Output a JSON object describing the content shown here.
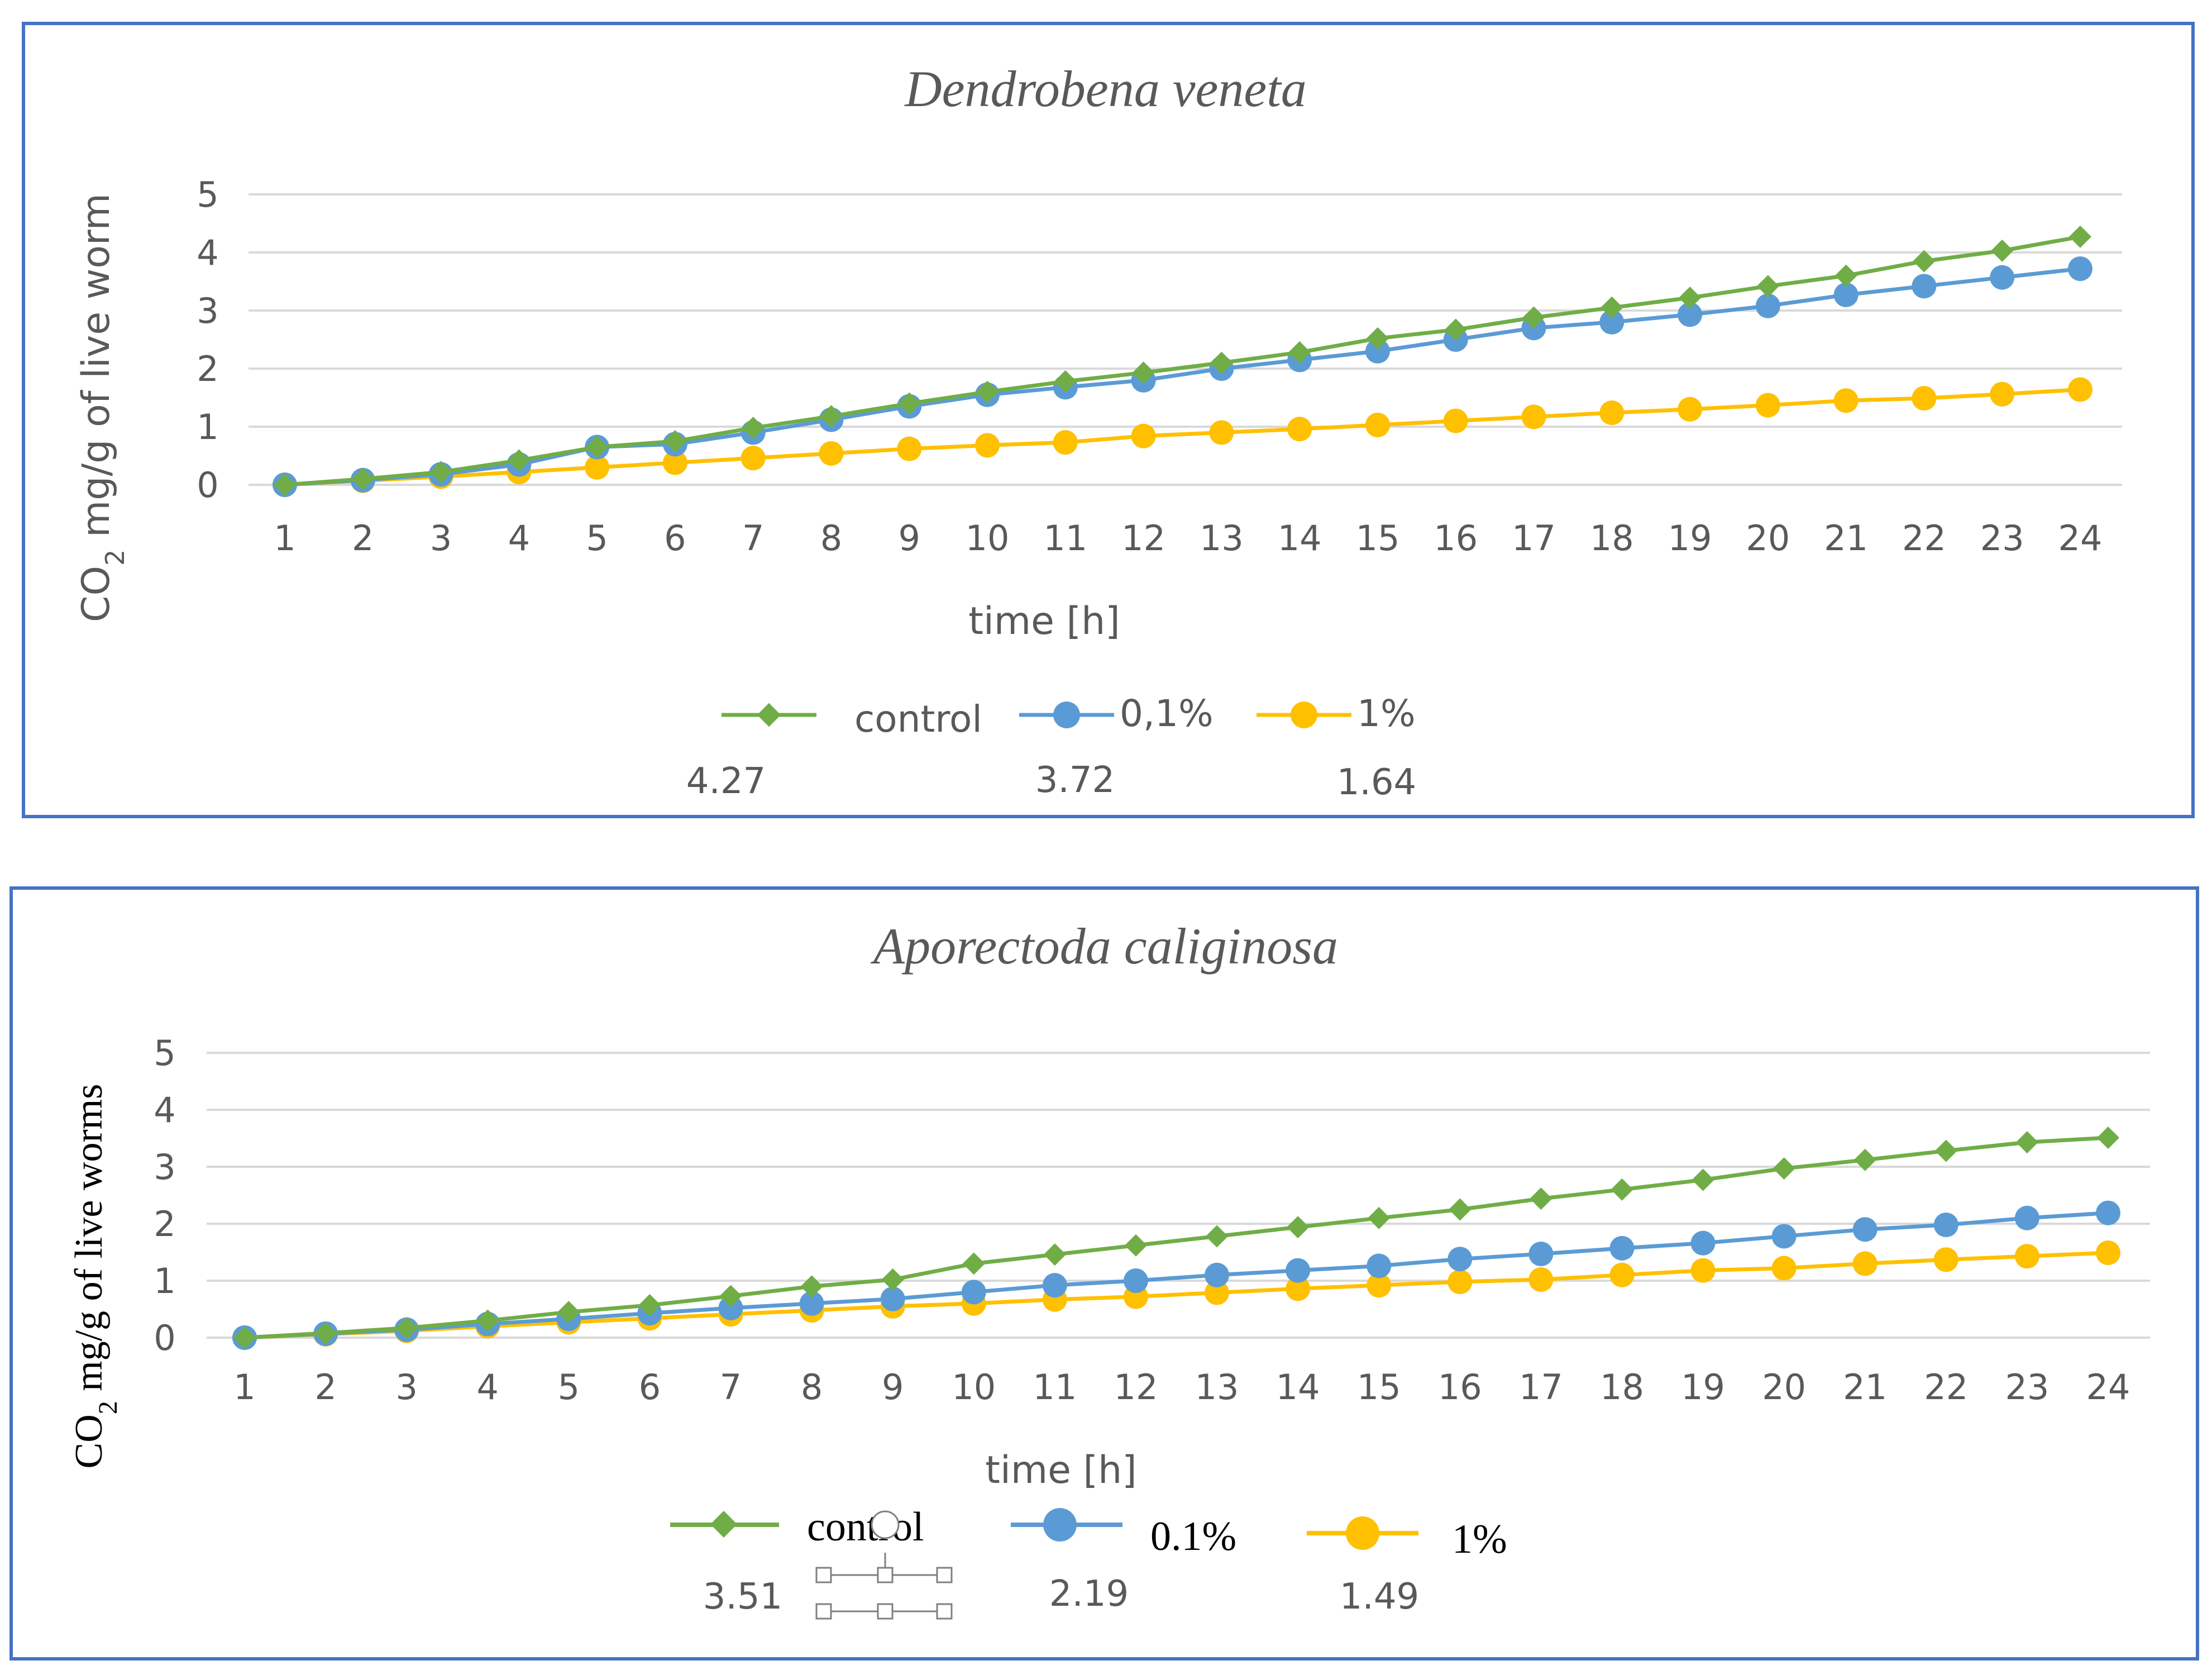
{
  "colors": {
    "frame": "#4472C4",
    "grid": "#D9D9D9",
    "axis_text": "#595959",
    "control": "#70AD47",
    "p01": "#5B9BD5",
    "p1": "#FFC000"
  },
  "chart_data": [
    {
      "type": "line",
      "title": "Dendrobena veneta",
      "xlabel": "time [h]",
      "ylabel_main": "CO",
      "ylabel_sub": "2",
      "ylabel_rest": "  mg/g of live worm",
      "ylim": [
        0,
        5
      ],
      "yticks": [
        "0",
        "1",
        "2",
        "3",
        "4",
        "5"
      ],
      "x": [
        "1",
        "2",
        "3",
        "4",
        "5",
        "6",
        "7",
        "8",
        "9",
        "10",
        "11",
        "12",
        "13",
        "14",
        "15",
        "16",
        "17",
        "18",
        "19",
        "20",
        "21",
        "22",
        "23",
        "24"
      ],
      "grid": true,
      "legend_position": "bottom",
      "series": [
        {
          "name": "control",
          "marker": "diamond",
          "final_label": "4.27",
          "values": [
            0,
            0.1,
            0.22,
            0.42,
            0.65,
            0.75,
            0.98,
            1.18,
            1.4,
            1.6,
            1.78,
            1.93,
            2.1,
            2.28,
            2.52,
            2.67,
            2.88,
            3.05,
            3.22,
            3.42,
            3.6,
            3.85,
            4.03,
            4.27
          ]
        },
        {
          "name": "0,1%",
          "marker": "circle",
          "final_label": "3.72",
          "values": [
            0,
            0.08,
            0.18,
            0.35,
            0.65,
            0.7,
            0.9,
            1.12,
            1.35,
            1.55,
            1.68,
            1.8,
            2.0,
            2.15,
            2.3,
            2.5,
            2.7,
            2.8,
            2.93,
            3.08,
            3.27,
            3.42,
            3.57,
            3.72
          ]
        },
        {
          "name": "1%",
          "marker": "circle",
          "final_label": "1.64",
          "values": [
            0,
            0.07,
            0.14,
            0.22,
            0.3,
            0.38,
            0.46,
            0.54,
            0.62,
            0.68,
            0.73,
            0.84,
            0.9,
            0.96,
            1.03,
            1.1,
            1.17,
            1.24,
            1.3,
            1.37,
            1.45,
            1.49,
            1.56,
            1.64
          ]
        }
      ]
    },
    {
      "type": "line",
      "title": "Aporectoda caliginosa",
      "xlabel": "time [h]",
      "ylabel_main": "CO",
      "ylabel_sub": "2",
      "ylabel_rest": " mg/g of live worms",
      "ylim": [
        0,
        5
      ],
      "yticks": [
        "0",
        "1",
        "2",
        "3",
        "4",
        "5"
      ],
      "x": [
        "1",
        "2",
        "3",
        "4",
        "5",
        "6",
        "7",
        "8",
        "9",
        "10",
        "11",
        "12",
        "13",
        "14",
        "15",
        "16",
        "17",
        "18",
        "19",
        "20",
        "21",
        "22",
        "23",
        "24"
      ],
      "grid": true,
      "legend_position": "bottom",
      "series": [
        {
          "name": "control",
          "marker": "diamond",
          "final_label": "3.51",
          "values": [
            0,
            0.08,
            0.17,
            0.3,
            0.45,
            0.57,
            0.73,
            0.9,
            1.02,
            1.3,
            1.46,
            1.62,
            1.78,
            1.94,
            2.1,
            2.25,
            2.44,
            2.6,
            2.77,
            2.97,
            3.12,
            3.28,
            3.43,
            3.51
          ]
        },
        {
          "name": "0.1%",
          "marker": "circle",
          "final_label": "2.19",
          "values": [
            0,
            0.07,
            0.14,
            0.24,
            0.33,
            0.43,
            0.52,
            0.6,
            0.68,
            0.8,
            0.92,
            1.0,
            1.1,
            1.18,
            1.26,
            1.38,
            1.47,
            1.57,
            1.66,
            1.78,
            1.9,
            1.98,
            2.1,
            2.19
          ]
        },
        {
          "name": "1%",
          "marker": "circle",
          "final_label": "1.49",
          "values": [
            0,
            0.06,
            0.12,
            0.2,
            0.27,
            0.34,
            0.41,
            0.48,
            0.55,
            0.6,
            0.67,
            0.72,
            0.79,
            0.86,
            0.92,
            0.98,
            1.02,
            1.1,
            1.18,
            1.22,
            1.3,
            1.37,
            1.43,
            1.49
          ]
        }
      ]
    }
  ]
}
